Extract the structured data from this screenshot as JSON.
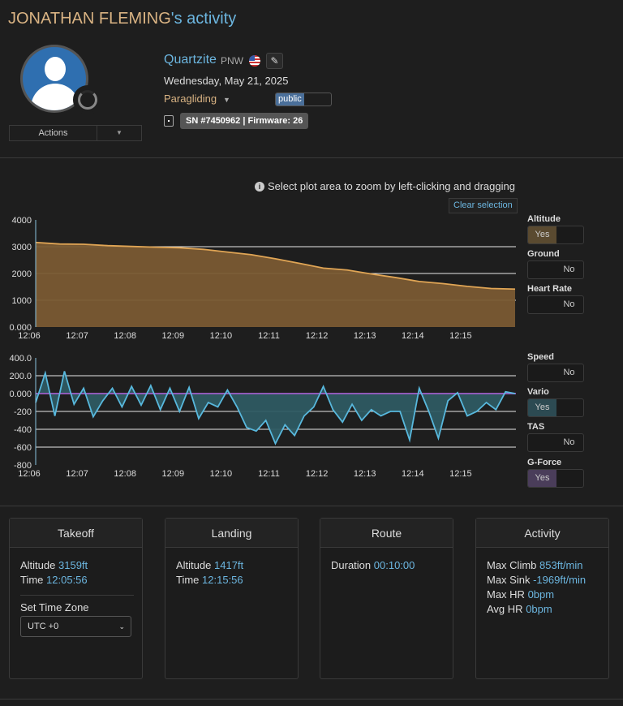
{
  "page": {
    "title_name": "JONATHAN FLEMING",
    "title_suffix": "'s activity"
  },
  "profile": {
    "actions_label": "Actions"
  },
  "site": {
    "name": "Quartzite",
    "region": "PNW",
    "date": "Wednesday, May 21, 2025",
    "activity_type": "Paragliding",
    "visibility": "public",
    "device_label": "SN #7450962 | Firmware: 26"
  },
  "plot": {
    "hint": "Select plot area to zoom by left-clicking and dragging",
    "clear_label": "Clear selection"
  },
  "toggles": [
    {
      "label": "Altitude",
      "state": "Yes",
      "on": true,
      "color": "#5a4a30"
    },
    {
      "label": "Ground",
      "state": "No",
      "on": false
    },
    {
      "label": "Heart Rate",
      "state": "No",
      "on": false
    },
    {
      "label": "Speed",
      "state": "No",
      "on": false
    },
    {
      "label": "Vario",
      "state": "Yes",
      "on": true,
      "color": "#2c4a52"
    },
    {
      "label": "TAS",
      "state": "No",
      "on": false
    },
    {
      "label": "G-Force",
      "state": "Yes",
      "on": true,
      "color": "#4a3d5a"
    }
  ],
  "chart_data": [
    {
      "type": "area",
      "x_ticks": [
        "12:06",
        "12:07",
        "12:08",
        "12:09",
        "12:10",
        "12:11",
        "12:12",
        "12:13",
        "12:14",
        "12:15"
      ],
      "y_ticks": [
        "4000",
        "3000",
        "2000",
        "1000",
        "0.000"
      ],
      "ylim": [
        0,
        4000
      ],
      "xlim_minutes": [
        0,
        10
      ],
      "grid": true,
      "color": "#e0a555",
      "series": [
        {
          "x": [
            0,
            0.5,
            1,
            1.5,
            2,
            2.5,
            3,
            3.5,
            4,
            4.5,
            5,
            5.5,
            6,
            6.5,
            7,
            7.5,
            8,
            8.5,
            9,
            9.5,
            10
          ],
          "y": [
            3159,
            3100,
            3090,
            3040,
            3010,
            2980,
            2960,
            2900,
            2800,
            2700,
            2550,
            2380,
            2200,
            2130,
            1980,
            1850,
            1700,
            1620,
            1520,
            1440,
            1417
          ]
        }
      ]
    },
    {
      "type": "area",
      "x_ticks": [
        "12:06",
        "12:07",
        "12:08",
        "12:09",
        "12:10",
        "12:11",
        "12:12",
        "12:13",
        "12:14",
        "12:15"
      ],
      "y_ticks": [
        "400.0",
        "200.0",
        "0.000",
        "-200",
        "-400",
        "-600",
        "-800"
      ],
      "ylim": [
        -800,
        400
      ],
      "xlim_minutes": [
        0,
        10
      ],
      "grid": true,
      "color": "#58b8dd",
      "g_force_color": "#8f5ab8",
      "series": [
        {
          "x": [
            0,
            0.2,
            0.4,
            0.6,
            0.8,
            1,
            1.2,
            1.4,
            1.6,
            1.8,
            2,
            2.2,
            2.4,
            2.6,
            2.8,
            3,
            3.2,
            3.4,
            3.6,
            3.8,
            4,
            4.2,
            4.4,
            4.6,
            4.8,
            5,
            5.2,
            5.4,
            5.6,
            5.8,
            6,
            6.2,
            6.4,
            6.6,
            6.8,
            7,
            7.2,
            7.4,
            7.6,
            7.8,
            8,
            8.2,
            8.4,
            8.6,
            8.8,
            9,
            9.2,
            9.4,
            9.6,
            9.8,
            10
          ],
          "y": [
            -100,
            230,
            -250,
            250,
            -120,
            60,
            -260,
            -80,
            60,
            -150,
            80,
            -130,
            90,
            -180,
            60,
            -200,
            70,
            -280,
            -100,
            -150,
            40,
            -150,
            -380,
            -420,
            -300,
            -560,
            -350,
            -470,
            -250,
            -150,
            80,
            -180,
            -320,
            -120,
            -300,
            -180,
            -250,
            -200,
            -200,
            -520,
            60,
            -200,
            -500,
            -80,
            10,
            -250,
            -200,
            -100,
            -180,
            20,
            0
          ]
        }
      ]
    }
  ],
  "cards": {
    "takeoff": {
      "title": "Takeoff",
      "alt_label": "Altitude",
      "alt_value": "3159ft",
      "time_label": "Time",
      "time_value": "12:05:56",
      "tz_label": "Set Time Zone",
      "tz_value": "UTC +0"
    },
    "landing": {
      "title": "Landing",
      "alt_label": "Altitude",
      "alt_value": "1417ft",
      "time_label": "Time",
      "time_value": "12:15:56"
    },
    "route": {
      "title": "Route",
      "duration_label": "Duration",
      "duration_value": "00:10:00"
    },
    "activity": {
      "title": "Activity",
      "max_climb_label": "Max Climb",
      "max_climb_value": "853ft/min",
      "max_sink_label": "Max Sink",
      "max_sink_value": "-1969ft/min",
      "max_hr_label": "Max HR",
      "max_hr_value": "0bpm",
      "avg_hr_label": "Avg HR",
      "avg_hr_value": "0bpm"
    }
  }
}
